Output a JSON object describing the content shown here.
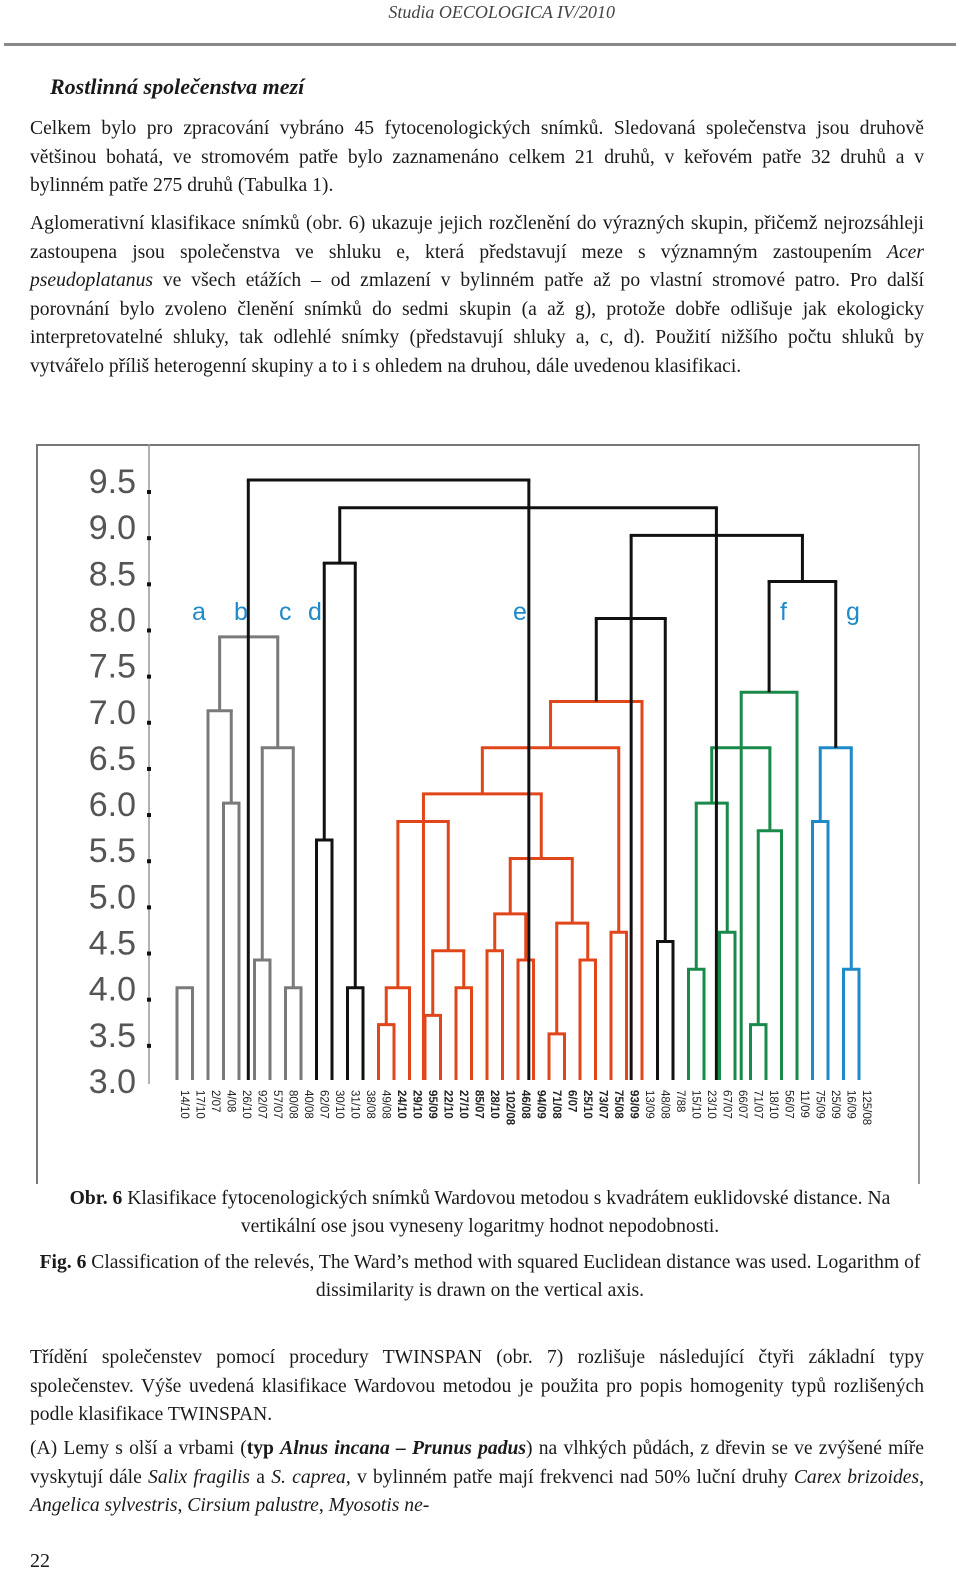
{
  "running_head": "Studia OECOLOGICA IV/2010",
  "section_title": "Rostlinná společenstva mezí",
  "paragraphs": {
    "p1": "Celkem bylo pro zpracování vybráno 45 fytocenologických snímků. Sledovaná společenstva jsou druhově většinou bohatá, ve stromovém patře bylo zaznamenáno celkem 21 druhů, v keřovém patře 32 druhů a v bylinném patře 275 druhů (Tabulka 1).",
    "p2_a": "Aglomerativní klasifikace snímků (obr. 6) ukazuje jejich rozčlenění do výrazných skupin, přičemž nejrozsáhleji zastoupena jsou společenstva ve shluku e, která představují meze s významným zastoupením ",
    "p2_b": "Acer pseudoplatanus",
    "p2_c": " ve všech etážích – od zmlazení v bylinném patře až po vlastní stromové patro. Pro další porovnání bylo zvoleno členění snímků do sedmi skupin (a až g), protože dobře odlišuje jak ekologicky interpretovatelné shluky, tak odlehlé snímky (představují shluky a, c, d). Použití nižšího počtu shluků by vytvářelo příliš heterogenní skupiny a to i s ohledem na druhou, dále uvedenou klasifikaci.",
    "p3": "Třídění společenstev pomocí procedury TWINSPAN (obr. 7) rozlišuje následující čtyři základní typy společenstev. Výše uvedená klasifikace Wardovou metodou je použita pro popis homogenity typů rozlišených podle klasifikace TWINSPAN.",
    "p4_a": "(A) Lemy s olší a vrbami (",
    "p4_b": "typ ",
    "p4_c": "Alnus incana – Prunus padus",
    "p4_d": ") na vlhkých půdách, z dřevin se ve zvýšené míře vyskytují dále ",
    "p4_e": "Salix fragilis",
    "p4_f": " a ",
    "p4_g": "S. caprea",
    "p4_h": ", v bylinném patře mají frekvenci nad 50% luční druhy ",
    "p4_i": "Carex brizoides",
    "p4_j": ", ",
    "p4_k": "Angelica sylvestris",
    "p4_l": ", ",
    "p4_m": "Cirsium palustre",
    "p4_n": ", ",
    "p4_o": "Myosotis ne-"
  },
  "captions": {
    "cz_label": "Obr. 6",
    "cz_text": " Klasifikace fytocenologických snímků Wardovou metodou s kvadrátem euklidovské distance. Na vertikální ose jsou vyneseny logaritmy hodnot nepodobnosti.",
    "en_label": "Fig. 6",
    "en_text": " Classification of the relevés, The Ward’s method with squared Euclidean distance was used. Logarithm of dissimilarity is drawn on the vertical axis."
  },
  "page_number": "22",
  "chart_data": {
    "type": "dendrogram",
    "y_ticks": [
      "9.5",
      "9.0",
      "8.5",
      "8.0",
      "7.5",
      "7.0",
      "6.5",
      "6.0",
      "5.5",
      "5.0",
      "4.5",
      "4.0",
      "3.5",
      "3.0"
    ],
    "ylim": [
      3.0,
      9.5
    ],
    "leaves": [
      "14/10",
      "17/10",
      "2/07",
      "4/08",
      "26/10",
      "92/07",
      "57/07",
      "80/08",
      "40/08",
      "62/07",
      "30/10",
      "31/10",
      "38/08",
      "49/08",
      "24/10",
      "29/10",
      "95/09",
      "22/10",
      "27/10",
      "85/07",
      "28/10",
      "102/08",
      "46/08",
      "94/09",
      "71/08",
      "6/07",
      "25/10",
      "73/07",
      "75/08",
      "93/09",
      "13/09",
      "48/08",
      "7/88",
      "15/10",
      "23/10",
      "67/07",
      "66/07",
      "71/07",
      "18/10",
      "56/07",
      "11/09",
      "75/09",
      "25/09",
      "16/09",
      "125/08"
    ],
    "bold_leaves": [
      "24/10",
      "29/10",
      "95/09",
      "22/10",
      "27/10",
      "85/07",
      "28/10",
      "102/08",
      "46/08",
      "94/09",
      "71/08",
      "6/07",
      "25/10",
      "73/07",
      "75/08",
      "93/09"
    ],
    "cluster_labels": [
      "a",
      "b",
      "c",
      "d",
      "e",
      "f",
      "g"
    ],
    "colors": {
      "gray": "#7a7a7a",
      "black": "#111111",
      "red": "#e0461a",
      "green": "#1a8a4a",
      "blue": "#1e8ac8"
    },
    "links": [
      {
        "c": "gray",
        "x1": 0,
        "x2": 1,
        "h": 4.0
      },
      {
        "c": "gray",
        "x1": 3,
        "x2": 4,
        "h": 6.0
      },
      {
        "c": "gray",
        "x1": 2,
        "x2": 3.5,
        "h": 7.0
      },
      {
        "c": "gray",
        "x1": 5,
        "x2": 6,
        "h": 4.3
      },
      {
        "c": "gray",
        "x1": 7,
        "x2": 8,
        "h": 4.0
      },
      {
        "c": "gray",
        "x1": 5.5,
        "x2": 7.5,
        "h": 6.6
      },
      {
        "c": "gray",
        "x1": 2.75,
        "x2": 6.5,
        "h": 7.8
      },
      {
        "c": "black",
        "x1": 9,
        "x2": 10,
        "h": 5.6
      },
      {
        "c": "black",
        "x1": 11,
        "x2": 12,
        "h": 4.0
      },
      {
        "c": "black",
        "x1": 9.5,
        "x2": 11.5,
        "h": 8.6
      },
      {
        "c": "red",
        "x1": 13,
        "x2": 14,
        "h": 3.6
      },
      {
        "c": "red",
        "x1": 13.5,
        "x2": 15,
        "h": 4.0
      },
      {
        "c": "red",
        "x1": 16,
        "x2": 17,
        "h": 3.7
      },
      {
        "c": "red",
        "x1": 18,
        "x2": 19,
        "h": 4.0
      },
      {
        "c": "red",
        "x1": 16.5,
        "x2": 18.5,
        "h": 4.4
      },
      {
        "c": "red",
        "x1": 14.25,
        "x2": 17.5,
        "h": 5.8
      },
      {
        "c": "red",
        "x1": 20,
        "x2": 21,
        "h": 4.4
      },
      {
        "c": "red",
        "x1": 22,
        "x2": 23,
        "h": 4.3
      },
      {
        "c": "red",
        "x1": 20.5,
        "x2": 22.5,
        "h": 4.8
      },
      {
        "c": "red",
        "x1": 24,
        "x2": 25,
        "h": 3.5
      },
      {
        "c": "red",
        "x1": 26,
        "x2": 27,
        "h": 4.3
      },
      {
        "c": "red",
        "x1": 24.5,
        "x2": 26.5,
        "h": 4.7
      },
      {
        "c": "red",
        "x1": 21.5,
        "x2": 25.5,
        "h": 5.4
      },
      {
        "c": "red",
        "x1": 15.9,
        "x2": 23.5,
        "h": 6.1
      },
      {
        "c": "red",
        "x1": 28,
        "x2": 29,
        "h": 4.6
      },
      {
        "c": "red",
        "x1": 19.7,
        "x2": 28.5,
        "h": 6.6
      },
      {
        "c": "red",
        "x1": 24.1,
        "x2": 30,
        "h": 7.1
      },
      {
        "c": "black",
        "x1": 31,
        "x2": 32,
        "h": 4.5
      },
      {
        "c": "black",
        "x1": 27.05,
        "x2": 31.5,
        "h": 8.0
      },
      {
        "c": "green",
        "x1": 33,
        "x2": 34,
        "h": 4.2
      },
      {
        "c": "green",
        "x1": 35,
        "x2": 36,
        "h": 4.6
      },
      {
        "c": "green",
        "x1": 33.5,
        "x2": 35.5,
        "h": 6.0
      },
      {
        "c": "green",
        "x1": 37,
        "x2": 38,
        "h": 3.6
      },
      {
        "c": "green",
        "x1": 37.5,
        "x2": 39,
        "h": 5.7
      },
      {
        "c": "green",
        "x1": 34.5,
        "x2": 38.25,
        "h": 6.6
      },
      {
        "c": "green",
        "x1": 36.4,
        "x2": 40,
        "h": 7.2
      },
      {
        "c": "blue",
        "x1": 41,
        "x2": 42,
        "h": 5.8
      },
      {
        "c": "blue",
        "x1": 43,
        "x2": 44,
        "h": 4.2
      },
      {
        "c": "blue",
        "x1": 41.5,
        "x2": 43.5,
        "h": 6.6
      },
      {
        "c": "black",
        "x1": 38.2,
        "x2": 42.5,
        "h": 8.4
      },
      {
        "c": "black",
        "x1": 29.3,
        "x2": 40.35,
        "h": 8.9
      },
      {
        "c": "black",
        "x1": 10.5,
        "x2": 34.8,
        "h": 9.2
      },
      {
        "c": "black",
        "x1": 4.6,
        "x2": 22.7,
        "h": 9.5
      }
    ]
  }
}
